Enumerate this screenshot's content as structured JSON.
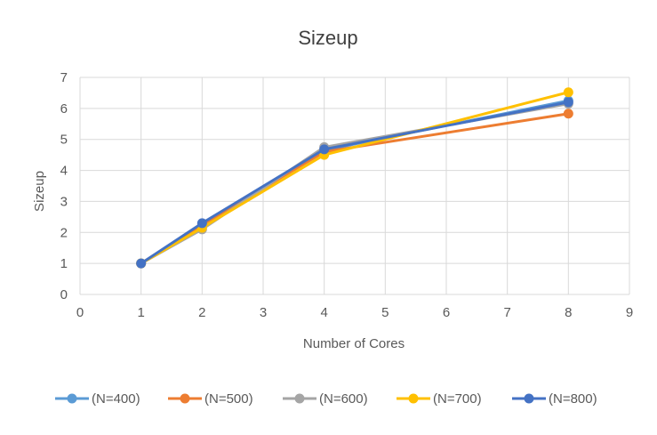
{
  "chart_data": {
    "type": "line",
    "title": "Sizeup",
    "xlabel": "Number of Cores",
    "ylabel": "Sizeup",
    "xlim": [
      0,
      9
    ],
    "ylim": [
      0,
      7
    ],
    "x_ticks": [
      "0",
      "1",
      "2",
      "3",
      "4",
      "5",
      "6",
      "7",
      "8",
      "9"
    ],
    "y_ticks": [
      "0",
      "1",
      "2",
      "3",
      "4",
      "5",
      "6",
      "7"
    ],
    "grid": true,
    "legend_position": "bottom",
    "x": [
      1,
      2,
      4,
      8
    ],
    "series": [
      {
        "name": "(N=400)",
        "color": "#5B9BD5",
        "values": [
          1,
          2.2,
          4.65,
          6.25
        ]
      },
      {
        "name": "(N=500)",
        "color": "#ED7D31",
        "values": [
          1,
          2.25,
          4.6,
          5.83
        ]
      },
      {
        "name": "(N=600)",
        "color": "#A5A5A5",
        "values": [
          1,
          2.1,
          4.75,
          6.15
        ]
      },
      {
        "name": "(N=700)",
        "color": "#FFC000",
        "values": [
          1,
          2.15,
          4.5,
          6.52
        ]
      },
      {
        "name": "(N=800)",
        "color": "#4472C4",
        "values": [
          1,
          2.3,
          4.68,
          6.2
        ]
      }
    ]
  }
}
